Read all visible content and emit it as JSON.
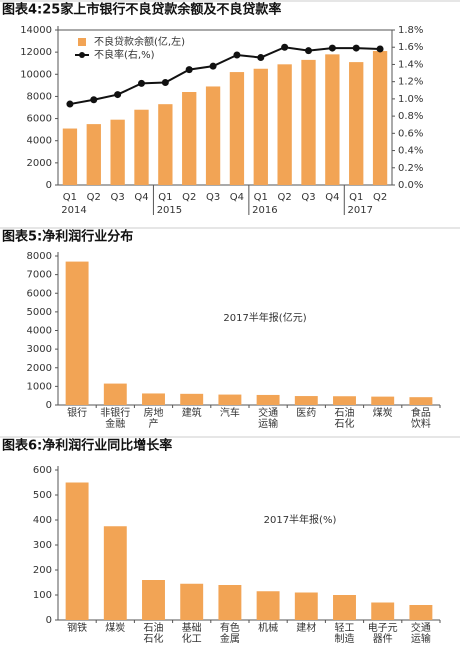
{
  "chart_data": [
    {
      "type": "combo",
      "title": "图表4:25家上市银行不良贷款余额及不良贷款率",
      "category_groups": [
        {
          "name": "2014",
          "categories": [
            "Q1",
            "Q2",
            "Q3",
            "Q4"
          ]
        },
        {
          "name": "2015",
          "categories": [
            "Q1",
            "Q2",
            "Q3",
            "Q4"
          ]
        },
        {
          "name": "2016",
          "categories": [
            "Q1",
            "Q2",
            "Q3",
            "Q4"
          ]
        },
        {
          "name": "2017",
          "categories": [
            "Q1",
            "Q2"
          ]
        }
      ],
      "series": [
        {
          "name": "不良贷款余额(亿,左)",
          "type": "bar",
          "axis": "y",
          "color": "#f2a455",
          "values": [
            5100,
            5500,
            5900,
            6800,
            7300,
            8400,
            8900,
            10200,
            10500,
            10900,
            11300,
            11800,
            11100,
            12100
          ]
        },
        {
          "name": "不良率(右,%)",
          "type": "line",
          "axis": "y2",
          "color": "#111111",
          "values": [
            0.94,
            0.99,
            1.05,
            1.18,
            1.19,
            1.34,
            1.38,
            1.51,
            1.48,
            1.6,
            1.56,
            1.59,
            1.59,
            1.58
          ]
        }
      ],
      "ylim": [
        0,
        14000
      ],
      "yticks": [
        0,
        2000,
        4000,
        6000,
        8000,
        10000,
        12000,
        14000
      ],
      "y2lim": [
        0,
        1.8
      ],
      "y2ticks": [
        {
          "value": 0,
          "label": "0.0%"
        },
        {
          "value": 0.2,
          "label": "0.2%"
        },
        {
          "value": 0.4,
          "label": "0.4%"
        },
        {
          "value": 0.6,
          "label": "0.6%"
        },
        {
          "value": 0.8,
          "label": "0.8%"
        },
        {
          "value": 1.0,
          "label": "1.0%"
        },
        {
          "value": 1.2,
          "label": "1.2%"
        },
        {
          "value": 1.4,
          "label": "1.4%"
        },
        {
          "value": 1.6,
          "label": "1.6%"
        },
        {
          "value": 1.8,
          "label": "1.8%"
        }
      ],
      "legend": "top-left",
      "grid": false
    },
    {
      "type": "bar",
      "title": "图表5:净利润行业分布",
      "annotation": "2017半年报(亿元)",
      "categories": [
        "银行",
        "非银行金融",
        "房地产",
        "建筑",
        "汽车",
        "交通运输",
        "医药",
        "石油石化",
        "煤炭",
        "食品饮料"
      ],
      "values": [
        7700,
        1150,
        620,
        600,
        560,
        540,
        480,
        470,
        450,
        420
      ],
      "color": "#f2a455",
      "ylim": [
        0,
        8000
      ],
      "yticks": [
        0,
        1000,
        2000,
        3000,
        4000,
        5000,
        6000,
        7000,
        8000
      ],
      "grid": false
    },
    {
      "type": "bar",
      "title": "图表6:净利润行业同比增长率",
      "annotation": "2017半年报(%)",
      "categories": [
        "钢铁",
        "煤炭",
        "石油石化",
        "基础化工",
        "有色金属",
        "机械",
        "建材",
        "轻工制造",
        "电子元器件",
        "交通运输"
      ],
      "values": [
        550,
        375,
        160,
        145,
        140,
        115,
        110,
        100,
        70,
        60
      ],
      "color": "#f2a455",
      "ylim": [
        0,
        600
      ],
      "yticks": [
        0,
        100,
        200,
        300,
        400,
        500,
        600
      ],
      "grid": false
    }
  ]
}
